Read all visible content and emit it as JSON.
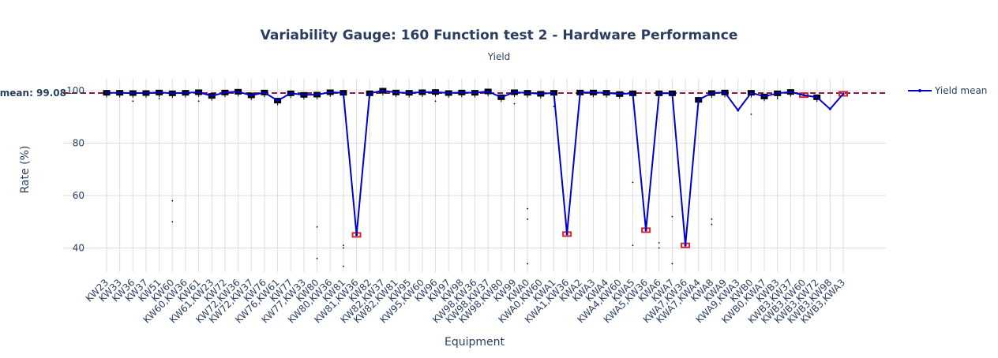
{
  "chart_data": {
    "type": "line",
    "title": "Variability Gauge: 160  Function test 2 - Hardware Performance",
    "subtitle": "Yield",
    "xlabel": "Equipment",
    "ylabel": "Rate (%)",
    "ylim": [
      30,
      105
    ],
    "yticks": [
      40,
      60,
      80,
      100
    ],
    "grid": true,
    "legend_position": "top-right",
    "mean_label": "mean: 99.08",
    "mean_value": 99.08,
    "colors": {
      "line": "#0000cc",
      "mean": "#8b1a4a",
      "box": "#000000",
      "box_red": "#d62728",
      "grid": "#dddddd",
      "text": "#2a3f5f"
    },
    "categories": [
      "KW23",
      "KW33",
      "KW36",
      "KW37",
      "KW51",
      "KW60",
      "KW60,KW36",
      "KW61",
      "KW61,KW23",
      "KW72",
      "KW72,KW36",
      "KW72,KW37",
      "KW76",
      "KW76,KW61",
      "KW77",
      "KW77,KW33",
      "KW80",
      "KW80,KW36",
      "KW81",
      "KW81,KW36",
      "KW82",
      "KW82,KW37",
      "KW82,KW81",
      "KW95",
      "KW95,KW60",
      "KW96",
      "KW97",
      "KW98",
      "KW98,KW36",
      "KW98,KW37",
      "KW98,KW80",
      "KW99",
      "KWA0",
      "KWA0,KW60",
      "KWA1",
      "KWA1,KW36",
      "KWA2",
      "KWA3",
      "KWA4",
      "KWA4,KW60",
      "KWA5",
      "KWA5,KW36",
      "KWA6",
      "KWA7",
      "KWA7,KW36",
      "KWA7,KWA4",
      "KWA8",
      "KWA9",
      "KWA9,KWA3",
      "KWB0",
      "KWB0,KWA7",
      "KWB3",
      "KWB3,KW37",
      "KWB3,KW60",
      "KWB3,KW72",
      "KWB3,KW98",
      "KWB3,KWA3"
    ],
    "series": [
      {
        "name": "Yield mean",
        "values": [
          99.2,
          99.2,
          99.1,
          99.1,
          99.3,
          99.0,
          99.2,
          99.4,
          98.0,
          99.3,
          99.6,
          98.2,
          99.3,
          96.2,
          99.0,
          98.4,
          98.5,
          99.4,
          99.2,
          45.0,
          99.0,
          100.0,
          99.3,
          99.2,
          99.4,
          99.5,
          99.1,
          99.3,
          99.2,
          99.7,
          97.5,
          99.4,
          99.2,
          98.8,
          99.2,
          45.3,
          99.3,
          99.3,
          99.2,
          98.7,
          99.0,
          46.8,
          99.0,
          99.0,
          41.0,
          96.5,
          99.1,
          99.3,
          92.5,
          99.2,
          97.8,
          99.0,
          99.5,
          98.3,
          97.5,
          93.0,
          98.8
        ]
      }
    ],
    "outliers": [
      {
        "category": "KW36",
        "values": [
          96.0
        ]
      },
      {
        "category": "KW51",
        "values": [
          97.0
        ]
      },
      {
        "category": "KW60",
        "values": [
          58.0,
          50.0
        ]
      },
      {
        "category": "KW61",
        "values": [
          96.0
        ]
      },
      {
        "category": "KW80",
        "values": [
          48.0,
          36.0
        ]
      },
      {
        "category": "KW81",
        "values": [
          41.0,
          40.0,
          33.0
        ]
      },
      {
        "category": "KW96",
        "values": [
          96.0
        ]
      },
      {
        "category": "KW99",
        "values": [
          95.0
        ]
      },
      {
        "category": "KWA0",
        "values": [
          55.0,
          51.0,
          34.0
        ]
      },
      {
        "category": "KWA1",
        "values": [
          94.0
        ]
      },
      {
        "category": "KWA5",
        "values": [
          65.0,
          41.0
        ]
      },
      {
        "category": "KWA6",
        "values": [
          42.0,
          40.0
        ]
      },
      {
        "category": "KWA7",
        "values": [
          52.0,
          34.0
        ]
      },
      {
        "category": "KWA8",
        "values": [
          51.0,
          49.0
        ]
      },
      {
        "category": "KWB0",
        "values": [
          91.0
        ]
      },
      {
        "category": "KWB3",
        "values": [
          97.0
        ]
      }
    ],
    "red_boxes": [
      "KW81,KW36",
      "KWA1,KW36",
      "KWA5,KW36",
      "KWA7,KW36",
      "KWB3,KW60",
      "KWB3,KWA3"
    ]
  }
}
